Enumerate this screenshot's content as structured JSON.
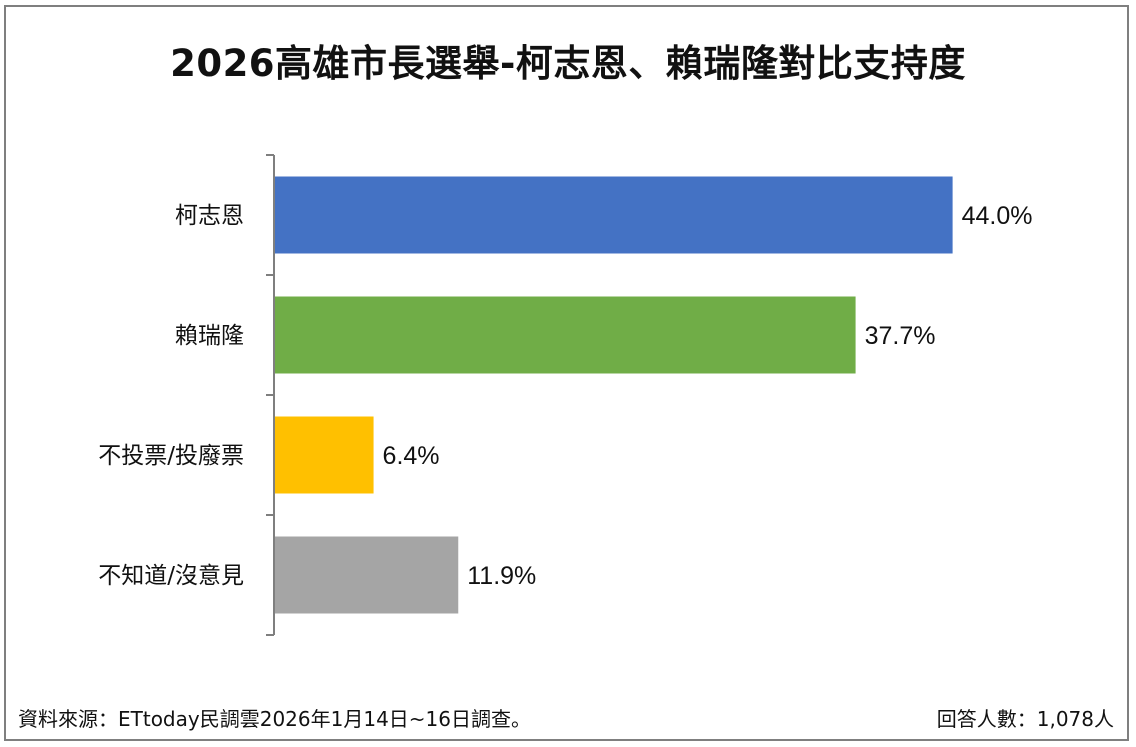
{
  "chart_data": {
    "type": "bar",
    "orientation": "horizontal",
    "title": "2026高雄市長選舉-柯志恩、賴瑞隆對比支持度",
    "categories": [
      "柯志恩",
      "賴瑞隆",
      "不投票/投廢票",
      "不知道/沒意見"
    ],
    "values": [
      44.0,
      37.7,
      6.4,
      11.9
    ],
    "value_labels": [
      "44.0%",
      "37.7%",
      "6.4%",
      "11.9%"
    ],
    "colors": [
      "#4472c4",
      "#70ad47",
      "#ffc000",
      "#a5a5a5"
    ],
    "xlim": [
      0,
      50
    ],
    "grid": false,
    "legend": "none"
  },
  "footer": {
    "source": "資料來源：ETtoday民調雲2026年1月14日~16日調查。",
    "respondents": "回答人數：1,078人"
  }
}
